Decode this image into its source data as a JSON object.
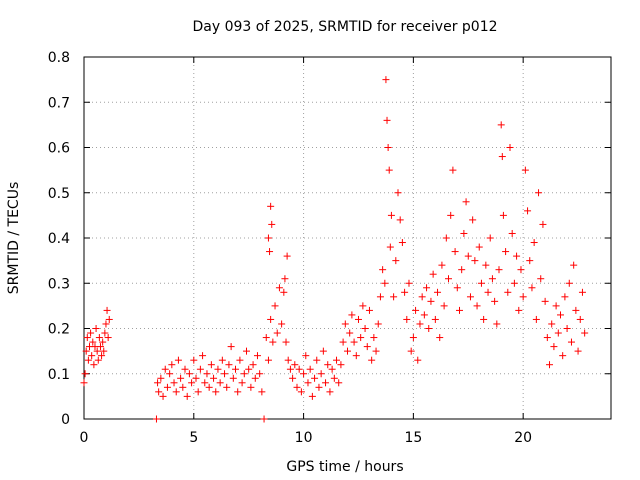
{
  "chart_data": {
    "type": "scatter",
    "title": "Day 093 of 2025, SRMTID for receiver p012",
    "xlabel": "GPS time / hours",
    "ylabel": "SRMTID / TECUs",
    "xlim": [
      0,
      24
    ],
    "ylim": [
      0,
      0.8
    ],
    "xticks": [
      0,
      5,
      10,
      15,
      20
    ],
    "xtick_labels": [
      "0",
      "5",
      "10",
      "15",
      "20"
    ],
    "yticks": [
      0,
      0.1,
      0.2,
      0.3,
      0.4,
      0.5,
      0.6,
      0.7,
      0.8
    ],
    "ytick_labels": [
      "0",
      "0.1",
      "0.2",
      "0.3",
      "0.4",
      "0.5",
      "0.6",
      "0.7",
      "0.8"
    ],
    "grid": true,
    "marker": "+",
    "marker_color": "#ff0000",
    "series": [
      {
        "name": "SRMTID",
        "points": [
          [
            0.0,
            0.08
          ],
          [
            0.05,
            0.1
          ],
          [
            0.1,
            0.15
          ],
          [
            0.15,
            0.18
          ],
          [
            0.2,
            0.13
          ],
          [
            0.25,
            0.16
          ],
          [
            0.3,
            0.19
          ],
          [
            0.35,
            0.14
          ],
          [
            0.4,
            0.17
          ],
          [
            0.45,
            0.12
          ],
          [
            0.5,
            0.16
          ],
          [
            0.55,
            0.2
          ],
          [
            0.6,
            0.15
          ],
          [
            0.65,
            0.13
          ],
          [
            0.7,
            0.18
          ],
          [
            0.75,
            0.16
          ],
          [
            0.8,
            0.14
          ],
          [
            0.85,
            0.17
          ],
          [
            0.9,
            0.15
          ],
          [
            0.95,
            0.19
          ],
          [
            1.0,
            0.21
          ],
          [
            1.05,
            0.24
          ],
          [
            1.1,
            0.18
          ],
          [
            1.15,
            0.22
          ],
          [
            3.3,
            0.0
          ],
          [
            3.35,
            0.08
          ],
          [
            3.4,
            0.06
          ],
          [
            3.5,
            0.09
          ],
          [
            3.6,
            0.05
          ],
          [
            3.7,
            0.11
          ],
          [
            3.8,
            0.07
          ],
          [
            3.9,
            0.1
          ],
          [
            4.0,
            0.12
          ],
          [
            4.1,
            0.08
          ],
          [
            4.2,
            0.06
          ],
          [
            4.3,
            0.13
          ],
          [
            4.4,
            0.09
          ],
          [
            4.5,
            0.07
          ],
          [
            4.6,
            0.11
          ],
          [
            4.7,
            0.05
          ],
          [
            4.8,
            0.1
          ],
          [
            4.9,
            0.08
          ],
          [
            5.0,
            0.13
          ],
          [
            5.1,
            0.09
          ],
          [
            5.2,
            0.06
          ],
          [
            5.3,
            0.11
          ],
          [
            5.4,
            0.14
          ],
          [
            5.5,
            0.08
          ],
          [
            5.6,
            0.1
          ],
          [
            5.7,
            0.07
          ],
          [
            5.8,
            0.12
          ],
          [
            5.9,
            0.09
          ],
          [
            6.0,
            0.06
          ],
          [
            6.1,
            0.11
          ],
          [
            6.2,
            0.08
          ],
          [
            6.3,
            0.13
          ],
          [
            6.4,
            0.1
          ],
          [
            6.5,
            0.07
          ],
          [
            6.6,
            0.12
          ],
          [
            6.7,
            0.16
          ],
          [
            6.8,
            0.09
          ],
          [
            6.9,
            0.11
          ],
          [
            7.0,
            0.06
          ],
          [
            7.1,
            0.13
          ],
          [
            7.2,
            0.08
          ],
          [
            7.3,
            0.1
          ],
          [
            7.4,
            0.15
          ],
          [
            7.5,
            0.11
          ],
          [
            7.6,
            0.07
          ],
          [
            7.7,
            0.12
          ],
          [
            7.8,
            0.09
          ],
          [
            7.9,
            0.14
          ],
          [
            8.0,
            0.1
          ],
          [
            8.1,
            0.06
          ],
          [
            8.2,
            0.0
          ],
          [
            8.3,
            0.18
          ],
          [
            8.4,
            0.13
          ],
          [
            8.5,
            0.22
          ],
          [
            8.6,
            0.17
          ],
          [
            8.7,
            0.25
          ],
          [
            8.8,
            0.19
          ],
          [
            8.9,
            0.29
          ],
          [
            9.0,
            0.21
          ],
          [
            9.1,
            0.28
          ],
          [
            9.2,
            0.17
          ],
          [
            9.3,
            0.13
          ],
          [
            9.4,
            0.11
          ],
          [
            8.4,
            0.4
          ],
          [
            8.5,
            0.47
          ],
          [
            8.55,
            0.43
          ],
          [
            8.45,
            0.37
          ],
          [
            9.25,
            0.36
          ],
          [
            9.15,
            0.31
          ],
          [
            9.5,
            0.09
          ],
          [
            9.6,
            0.12
          ],
          [
            9.7,
            0.07
          ],
          [
            9.8,
            0.11
          ],
          [
            9.9,
            0.06
          ],
          [
            10.0,
            0.1
          ],
          [
            10.1,
            0.14
          ],
          [
            10.2,
            0.08
          ],
          [
            10.3,
            0.11
          ],
          [
            10.4,
            0.05
          ],
          [
            10.5,
            0.09
          ],
          [
            10.6,
            0.13
          ],
          [
            10.7,
            0.07
          ],
          [
            10.8,
            0.1
          ],
          [
            10.9,
            0.15
          ],
          [
            11.0,
            0.08
          ],
          [
            11.1,
            0.12
          ],
          [
            11.2,
            0.06
          ],
          [
            11.3,
            0.11
          ],
          [
            11.4,
            0.09
          ],
          [
            11.5,
            0.13
          ],
          [
            11.6,
            0.08
          ],
          [
            11.7,
            0.12
          ],
          [
            11.8,
            0.17
          ],
          [
            11.9,
            0.21
          ],
          [
            12.0,
            0.15
          ],
          [
            12.1,
            0.19
          ],
          [
            12.2,
            0.23
          ],
          [
            12.3,
            0.17
          ],
          [
            12.4,
            0.14
          ],
          [
            12.5,
            0.22
          ],
          [
            12.6,
            0.18
          ],
          [
            12.7,
            0.25
          ],
          [
            12.8,
            0.2
          ],
          [
            12.9,
            0.16
          ],
          [
            13.0,
            0.24
          ],
          [
            13.1,
            0.13
          ],
          [
            13.2,
            0.18
          ],
          [
            13.3,
            0.15
          ],
          [
            13.4,
            0.21
          ],
          [
            13.5,
            0.27
          ],
          [
            13.6,
            0.33
          ],
          [
            13.7,
            0.3
          ],
          [
            13.75,
            0.75
          ],
          [
            13.8,
            0.66
          ],
          [
            13.85,
            0.6
          ],
          [
            13.9,
            0.55
          ],
          [
            13.95,
            0.38
          ],
          [
            14.0,
            0.45
          ],
          [
            14.1,
            0.27
          ],
          [
            14.2,
            0.35
          ],
          [
            14.3,
            0.5
          ],
          [
            14.4,
            0.44
          ],
          [
            14.5,
            0.39
          ],
          [
            14.6,
            0.28
          ],
          [
            14.7,
            0.22
          ],
          [
            14.8,
            0.3
          ],
          [
            14.9,
            0.15
          ],
          [
            15.0,
            0.18
          ],
          [
            15.1,
            0.24
          ],
          [
            15.2,
            0.13
          ],
          [
            15.3,
            0.21
          ],
          [
            15.4,
            0.27
          ],
          [
            15.5,
            0.23
          ],
          [
            15.6,
            0.29
          ],
          [
            15.7,
            0.2
          ],
          [
            15.8,
            0.26
          ],
          [
            15.9,
            0.32
          ],
          [
            16.0,
            0.22
          ],
          [
            16.1,
            0.28
          ],
          [
            16.2,
            0.18
          ],
          [
            16.3,
            0.34
          ],
          [
            16.4,
            0.25
          ],
          [
            16.5,
            0.4
          ],
          [
            16.6,
            0.31
          ],
          [
            16.7,
            0.45
          ],
          [
            16.8,
            0.55
          ],
          [
            16.9,
            0.37
          ],
          [
            17.0,
            0.29
          ],
          [
            17.1,
            0.24
          ],
          [
            17.2,
            0.33
          ],
          [
            17.3,
            0.41
          ],
          [
            17.4,
            0.48
          ],
          [
            17.5,
            0.36
          ],
          [
            17.6,
            0.27
          ],
          [
            17.7,
            0.44
          ],
          [
            17.8,
            0.35
          ],
          [
            17.9,
            0.25
          ],
          [
            18.0,
            0.38
          ],
          [
            18.1,
            0.3
          ],
          [
            18.2,
            0.22
          ],
          [
            18.3,
            0.34
          ],
          [
            18.4,
            0.28
          ],
          [
            18.5,
            0.4
          ],
          [
            18.6,
            0.31
          ],
          [
            18.7,
            0.26
          ],
          [
            18.8,
            0.21
          ],
          [
            18.9,
            0.33
          ],
          [
            19.0,
            0.65
          ],
          [
            19.05,
            0.58
          ],
          [
            19.1,
            0.45
          ],
          [
            19.2,
            0.37
          ],
          [
            19.3,
            0.28
          ],
          [
            19.4,
            0.6
          ],
          [
            19.5,
            0.41
          ],
          [
            19.6,
            0.3
          ],
          [
            19.7,
            0.36
          ],
          [
            19.8,
            0.24
          ],
          [
            19.9,
            0.33
          ],
          [
            20.0,
            0.27
          ],
          [
            20.1,
            0.55
          ],
          [
            20.2,
            0.46
          ],
          [
            20.3,
            0.35
          ],
          [
            20.4,
            0.29
          ],
          [
            20.5,
            0.39
          ],
          [
            20.6,
            0.22
          ],
          [
            20.7,
            0.5
          ],
          [
            20.8,
            0.31
          ],
          [
            20.9,
            0.43
          ],
          [
            21.0,
            0.26
          ],
          [
            21.1,
            0.18
          ],
          [
            21.2,
            0.12
          ],
          [
            21.3,
            0.21
          ],
          [
            21.4,
            0.16
          ],
          [
            21.5,
            0.25
          ],
          [
            21.6,
            0.19
          ],
          [
            21.7,
            0.23
          ],
          [
            21.8,
            0.14
          ],
          [
            21.9,
            0.27
          ],
          [
            22.0,
            0.2
          ],
          [
            22.1,
            0.3
          ],
          [
            22.2,
            0.17
          ],
          [
            22.3,
            0.34
          ],
          [
            22.4,
            0.24
          ],
          [
            22.5,
            0.15
          ],
          [
            22.6,
            0.22
          ],
          [
            22.7,
            0.28
          ],
          [
            22.8,
            0.19
          ]
        ]
      }
    ]
  }
}
